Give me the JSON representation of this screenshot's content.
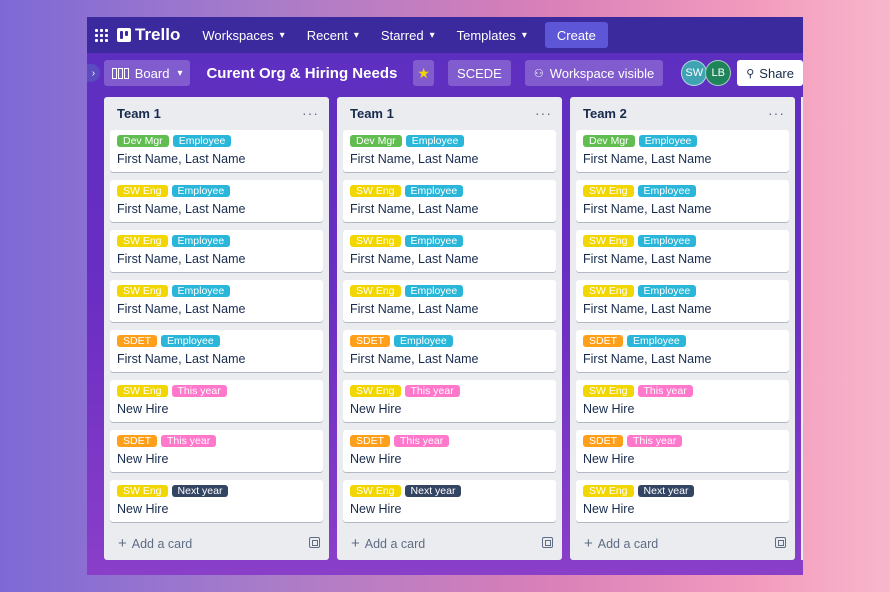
{
  "topnav": {
    "logo": "Trello",
    "menus": [
      {
        "label": "Workspaces"
      },
      {
        "label": "Recent"
      },
      {
        "label": "Starred"
      },
      {
        "label": "Templates"
      }
    ],
    "create_label": "Create"
  },
  "board": {
    "view_label": "Board",
    "title": "Curent Org & Hiring Needs",
    "workspace_label": "SCEDE",
    "visibility_label": "Workspace visible",
    "members": [
      "SW",
      "LB"
    ],
    "share_label": "Share"
  },
  "label_colors": {
    "Dev Mgr": "#61bd4f",
    "Employee": "#29b6d8",
    "SW Eng": "#f2d600",
    "SDET": "#ff9f1a",
    "This year": "#ff78cb",
    "Next year": "#344563"
  },
  "lists": [
    {
      "title": "Team 1",
      "add_card_label": "Add a card",
      "cards": [
        {
          "labels": [
            "Dev Mgr",
            "Employee"
          ],
          "name": "First Name, Last Name"
        },
        {
          "labels": [
            "SW Eng",
            "Employee"
          ],
          "name": "First Name, Last Name"
        },
        {
          "labels": [
            "SW Eng",
            "Employee"
          ],
          "name": "First Name, Last Name"
        },
        {
          "labels": [
            "SW Eng",
            "Employee"
          ],
          "name": "First Name, Last Name"
        },
        {
          "labels": [
            "SDET",
            "Employee"
          ],
          "name": "First Name, Last Name"
        },
        {
          "labels": [
            "SW Eng",
            "This year"
          ],
          "name": "New Hire"
        },
        {
          "labels": [
            "SDET",
            "This year"
          ],
          "name": "New Hire"
        },
        {
          "labels": [
            "SW Eng",
            "Next year"
          ],
          "name": "New Hire"
        }
      ]
    },
    {
      "title": "Team 1",
      "add_card_label": "Add a card",
      "cards": [
        {
          "labels": [
            "Dev Mgr",
            "Employee"
          ],
          "name": "First Name, Last Name"
        },
        {
          "labels": [
            "SW Eng",
            "Employee"
          ],
          "name": "First Name, Last Name"
        },
        {
          "labels": [
            "SW Eng",
            "Employee"
          ],
          "name": "First Name, Last Name"
        },
        {
          "labels": [
            "SW Eng",
            "Employee"
          ],
          "name": "First Name, Last Name"
        },
        {
          "labels": [
            "SDET",
            "Employee"
          ],
          "name": "First Name, Last Name"
        },
        {
          "labels": [
            "SW Eng",
            "This year"
          ],
          "name": "New Hire"
        },
        {
          "labels": [
            "SDET",
            "This year"
          ],
          "name": "New Hire"
        },
        {
          "labels": [
            "SW Eng",
            "Next year"
          ],
          "name": "New Hire"
        }
      ]
    },
    {
      "title": "Team 2",
      "add_card_label": "Add a card",
      "cards": [
        {
          "labels": [
            "Dev Mgr",
            "Employee"
          ],
          "name": "First Name, Last Name"
        },
        {
          "labels": [
            "SW Eng",
            "Employee"
          ],
          "name": "First Name, Last Name"
        },
        {
          "labels": [
            "SW Eng",
            "Employee"
          ],
          "name": "First Name, Last Name"
        },
        {
          "labels": [
            "SW Eng",
            "Employee"
          ],
          "name": "First Name, Last Name"
        },
        {
          "labels": [
            "SDET",
            "Employee"
          ],
          "name": "First Name, Last Name"
        },
        {
          "labels": [
            "SW Eng",
            "This year"
          ],
          "name": "New Hire"
        },
        {
          "labels": [
            "SDET",
            "This year"
          ],
          "name": "New Hire"
        },
        {
          "labels": [
            "SW Eng",
            "Next year"
          ],
          "name": "New Hire"
        }
      ]
    }
  ]
}
